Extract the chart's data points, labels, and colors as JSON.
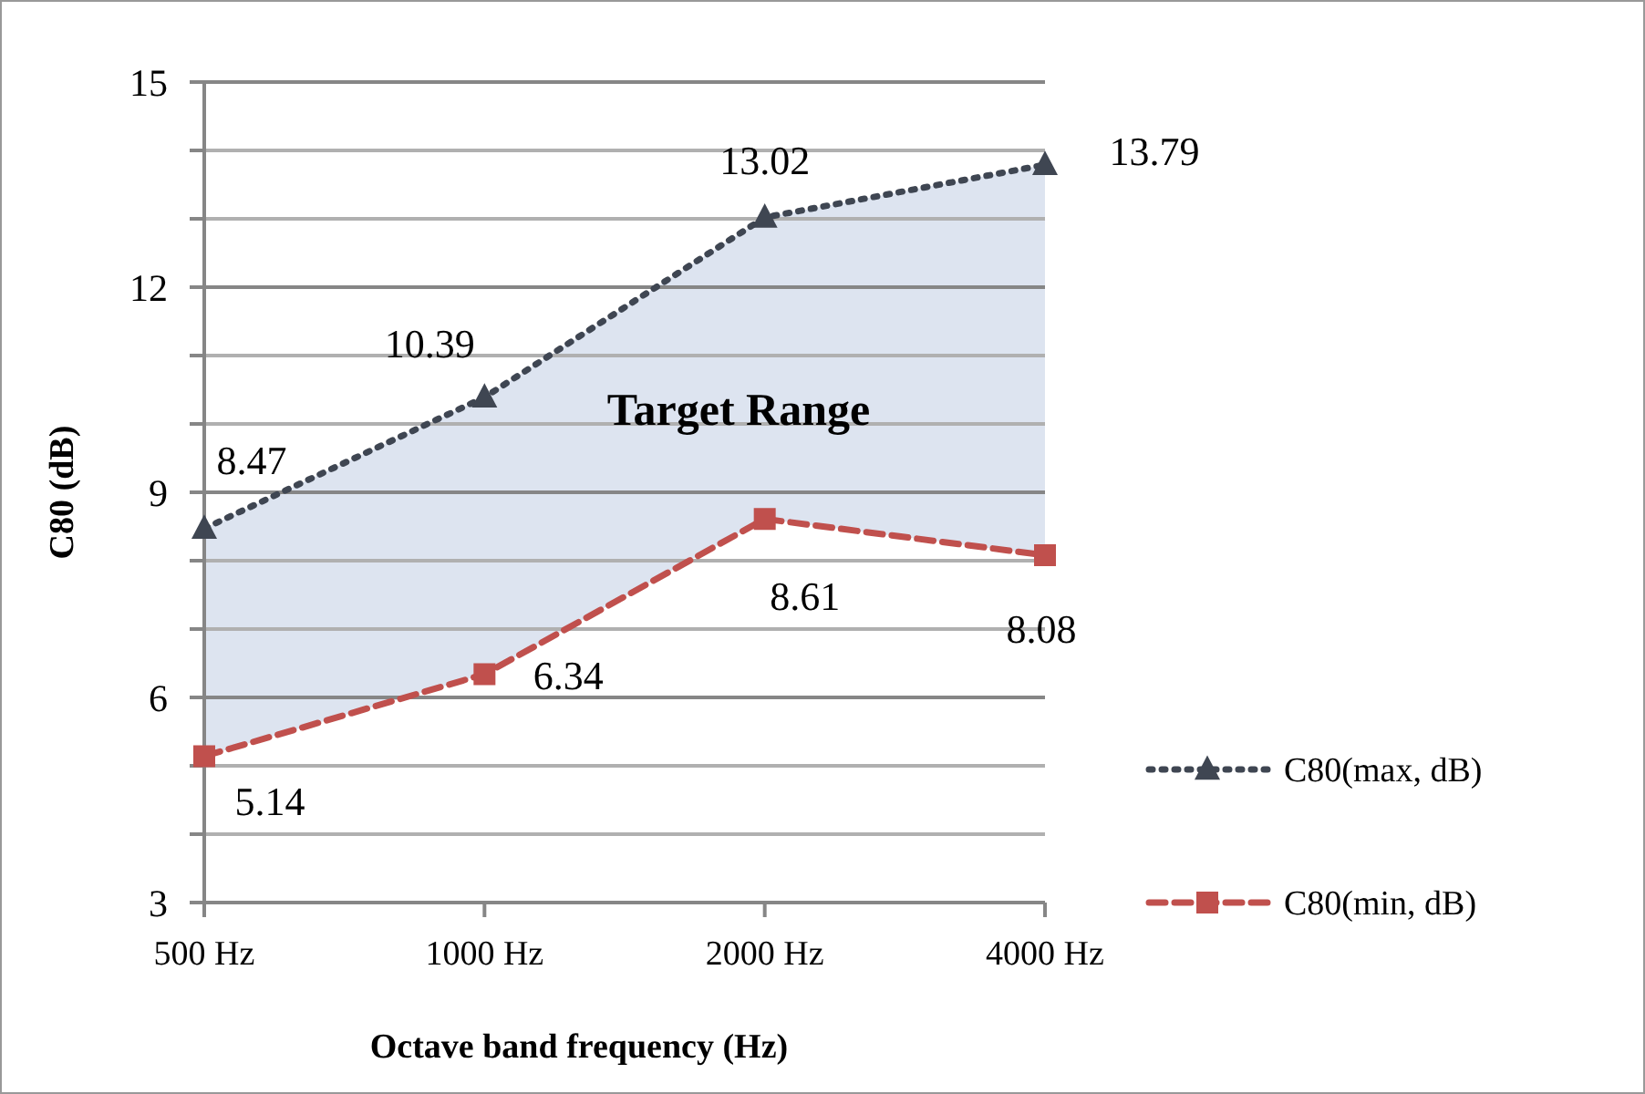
{
  "chart_data": {
    "type": "line",
    "xlabel": "Octave band frequency (Hz)",
    "ylabel": "C80 (dB)",
    "categories": [
      "500 Hz",
      "1000 Hz",
      "2000 Hz",
      "4000 Hz"
    ],
    "series": [
      {
        "name": "C80(max, dB)",
        "color": "#3f4652",
        "values": [
          8.47,
          10.39,
          13.02,
          13.79
        ],
        "marker": "triangle",
        "line_style": "dotted",
        "lower": [
          5.14,
          6.34,
          8.61,
          8.08
        ],
        "upper": [
          8.47,
          10.39,
          13.02,
          13.79
        ]
      },
      {
        "name": "C80(min, dB)",
        "color": "#c0504d",
        "values": [
          5.14,
          6.34,
          8.61,
          8.08
        ],
        "marker": "square",
        "line_style": "dashed"
      }
    ],
    "ylim": [
      3,
      15
    ],
    "yticks": [
      3,
      {
        "value": 4,
        "label": null
      },
      {
        "value": 5,
        "label": null
      },
      6,
      {
        "value": 7,
        "label": null
      },
      {
        "value": 8,
        "label": null
      },
      9,
      {
        "value": 10,
        "label": null
      },
      {
        "value": 11,
        "label": null
      },
      12,
      {
        "value": 13,
        "label": null
      },
      {
        "value": 14,
        "label": null
      },
      15
    ],
    "grid": "y",
    "legend": "right",
    "data_labels": true,
    "annotations": [
      "Target Range"
    ]
  }
}
